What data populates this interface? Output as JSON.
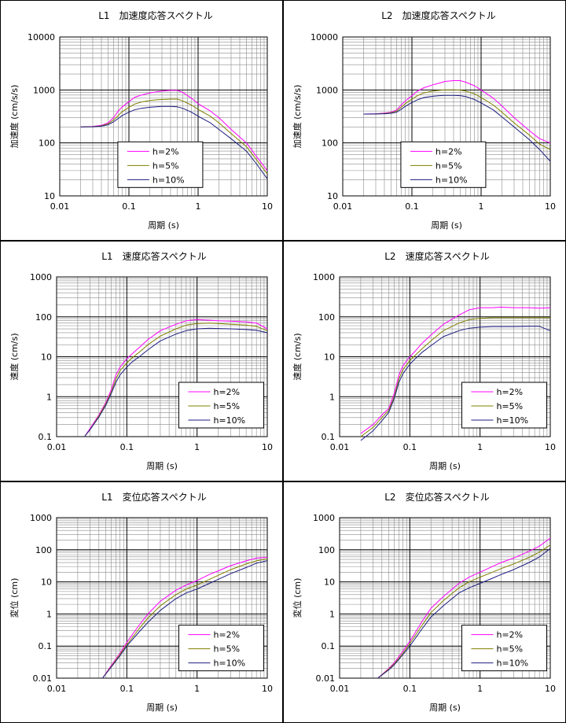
{
  "chart_data": [
    {
      "type": "line",
      "title": "L1　加速度応答スペクトル",
      "xlabel": "周期 (s)",
      "ylabel": "加速度 (cm/s/s)",
      "xscale": "log",
      "yscale": "log",
      "xlim": [
        0.01,
        10
      ],
      "ylim": [
        10,
        10000
      ],
      "xticks": [
        "0.01",
        "0.1",
        "1",
        "10"
      ],
      "yticks": [
        "10",
        "100",
        "1000",
        "10000"
      ],
      "grid": true,
      "legend_position": "bottom-center",
      "series": [
        {
          "name": "h=2%",
          "color": "#ff00ff",
          "x": [
            0.02,
            0.03,
            0.04,
            0.05,
            0.06,
            0.07,
            0.08,
            0.1,
            0.12,
            0.15,
            0.2,
            0.25,
            0.3,
            0.4,
            0.5,
            0.6,
            0.8,
            1,
            1.5,
            2,
            3,
            5,
            7,
            10
          ],
          "y": [
            200,
            205,
            215,
            240,
            300,
            400,
            480,
            600,
            720,
            800,
            880,
            920,
            950,
            980,
            980,
            900,
            700,
            550,
            400,
            300,
            180,
            100,
            55,
            30
          ]
        },
        {
          "name": "h=5%",
          "color": "#808000",
          "x": [
            0.02,
            0.03,
            0.04,
            0.05,
            0.06,
            0.07,
            0.08,
            0.1,
            0.12,
            0.15,
            0.2,
            0.25,
            0.3,
            0.4,
            0.5,
            0.6,
            0.8,
            1,
            1.5,
            2,
            3,
            5,
            7,
            10
          ],
          "y": [
            200,
            203,
            210,
            230,
            270,
            330,
            390,
            470,
            540,
            590,
            630,
            650,
            660,
            670,
            670,
            620,
            520,
            430,
            320,
            240,
            150,
            85,
            48,
            26
          ]
        },
        {
          "name": "h=10%",
          "color": "#1c1c80",
          "x": [
            0.02,
            0.03,
            0.04,
            0.05,
            0.06,
            0.07,
            0.08,
            0.1,
            0.12,
            0.15,
            0.2,
            0.25,
            0.3,
            0.4,
            0.5,
            0.6,
            0.8,
            1,
            1.5,
            2,
            3,
            5,
            7,
            10
          ],
          "y": [
            200,
            202,
            207,
            220,
            250,
            290,
            330,
            380,
            420,
            450,
            470,
            480,
            490,
            490,
            480,
            450,
            380,
            320,
            240,
            180,
            120,
            70,
            40,
            21
          ]
        }
      ]
    },
    {
      "type": "line",
      "title": "L2　加速度応答スペクトル",
      "xlabel": "周期 (s)",
      "ylabel": "加速度 (cm/s/s)",
      "xscale": "log",
      "yscale": "log",
      "xlim": [
        0.01,
        10
      ],
      "ylim": [
        10,
        10000
      ],
      "xticks": [
        "0.01",
        "0.1",
        "1",
        "10"
      ],
      "yticks": [
        "10",
        "100",
        "1000",
        "10000"
      ],
      "grid": true,
      "legend_position": "bottom-center",
      "series": [
        {
          "name": "h=2%",
          "color": "#ff00ff",
          "x": [
            0.02,
            0.03,
            0.04,
            0.05,
            0.06,
            0.07,
            0.08,
            0.1,
            0.12,
            0.15,
            0.2,
            0.25,
            0.3,
            0.4,
            0.5,
            0.6,
            0.8,
            1,
            1.5,
            2,
            3,
            5,
            7,
            10
          ],
          "y": [
            350,
            355,
            365,
            380,
            420,
            520,
            620,
            780,
            950,
            1100,
            1250,
            1350,
            1450,
            1500,
            1500,
            1400,
            1200,
            1000,
            700,
            500,
            300,
            170,
            120,
            100
          ]
        },
        {
          "name": "h=5%",
          "color": "#808000",
          "x": [
            0.02,
            0.03,
            0.04,
            0.05,
            0.06,
            0.07,
            0.08,
            0.1,
            0.12,
            0.15,
            0.2,
            0.25,
            0.3,
            0.4,
            0.5,
            0.6,
            0.8,
            1,
            1.5,
            2,
            3,
            5,
            7,
            10
          ],
          "y": [
            350,
            352,
            360,
            370,
            400,
            470,
            550,
            670,
            780,
            880,
            950,
            980,
            1000,
            1000,
            990,
            950,
            850,
            720,
            520,
            380,
            240,
            140,
            95,
            75
          ]
        },
        {
          "name": "h=10%",
          "color": "#1c1c80",
          "x": [
            0.02,
            0.03,
            0.04,
            0.05,
            0.06,
            0.07,
            0.08,
            0.1,
            0.12,
            0.15,
            0.2,
            0.25,
            0.3,
            0.4,
            0.5,
            0.6,
            0.8,
            1,
            1.5,
            2,
            3,
            5,
            7,
            10
          ],
          "y": [
            350,
            351,
            355,
            362,
            380,
            430,
            490,
            580,
            650,
            720,
            760,
            780,
            790,
            790,
            780,
            750,
            660,
            570,
            420,
            310,
            200,
            115,
            75,
            45
          ]
        }
      ]
    },
    {
      "type": "line",
      "title": "L1　速度応答スペクトル",
      "xlabel": "周期 (s)",
      "ylabel": "速度 (cm/s)",
      "xscale": "log",
      "yscale": "log",
      "xlim": [
        0.01,
        10
      ],
      "ylim": [
        0.1,
        1000
      ],
      "xticks": [
        "0.01",
        "0.1",
        "1",
        "10"
      ],
      "yticks": [
        "0.1",
        "1",
        "10",
        "100",
        "1000"
      ],
      "grid": true,
      "legend_position": "bottom-right",
      "series": [
        {
          "name": "h=2%",
          "color": "#ff00ff",
          "x": [
            0.025,
            0.03,
            0.04,
            0.05,
            0.06,
            0.07,
            0.08,
            0.1,
            0.12,
            0.15,
            0.2,
            0.3,
            0.5,
            0.7,
            1,
            1.5,
            2,
            3,
            5,
            7,
            10
          ],
          "y": [
            0.1,
            0.16,
            0.35,
            0.7,
            1.5,
            3.5,
            5.5,
            9,
            12,
            17,
            27,
            45,
            65,
            80,
            85,
            82,
            80,
            78,
            75,
            70,
            50
          ]
        },
        {
          "name": "h=5%",
          "color": "#808000",
          "x": [
            0.025,
            0.03,
            0.04,
            0.05,
            0.06,
            0.07,
            0.08,
            0.1,
            0.12,
            0.15,
            0.2,
            0.3,
            0.5,
            0.7,
            1,
            1.5,
            2,
            3,
            5,
            7,
            10
          ],
          "y": [
            0.1,
            0.15,
            0.33,
            0.65,
            1.3,
            2.8,
            4.5,
            7,
            9.5,
            13,
            20,
            33,
            50,
            62,
            68,
            70,
            68,
            65,
            62,
            58,
            45
          ]
        },
        {
          "name": "h=10%",
          "color": "#1c1c80",
          "x": [
            0.025,
            0.03,
            0.04,
            0.05,
            0.06,
            0.07,
            0.08,
            0.1,
            0.12,
            0.15,
            0.2,
            0.3,
            0.5,
            0.7,
            1,
            1.5,
            2,
            3,
            5,
            7,
            10
          ],
          "y": [
            0.1,
            0.15,
            0.31,
            0.6,
            1.2,
            2.3,
            3.5,
            5.5,
            7.5,
            10,
            15,
            25,
            37,
            45,
            50,
            52,
            51,
            50,
            48,
            46,
            40
          ]
        }
      ]
    },
    {
      "type": "line",
      "title": "L2　速度応答スペクトル",
      "xlabel": "周期 (s)",
      "ylabel": "速度 (cm/s)",
      "xscale": "log",
      "yscale": "log",
      "xlim": [
        0.01,
        10
      ],
      "ylim": [
        0.1,
        1000
      ],
      "xticks": [
        "0.01",
        "0.1",
        "1",
        "10"
      ],
      "yticks": [
        "0.1",
        "1",
        "10",
        "100",
        "1000"
      ],
      "grid": true,
      "legend_position": "bottom-right",
      "series": [
        {
          "name": "h=2%",
          "color": "#ff00ff",
          "x": [
            0.02,
            0.03,
            0.04,
            0.05,
            0.06,
            0.07,
            0.08,
            0.1,
            0.12,
            0.15,
            0.2,
            0.3,
            0.5,
            0.7,
            1,
            1.5,
            2,
            3,
            5,
            7,
            10
          ],
          "y": [
            0.12,
            0.2,
            0.35,
            0.5,
            1.2,
            3.5,
            6,
            10,
            14,
            22,
            35,
            65,
            110,
            150,
            170,
            170,
            175,
            170,
            170,
            165,
            170
          ]
        },
        {
          "name": "h=5%",
          "color": "#808000",
          "x": [
            0.02,
            0.03,
            0.04,
            0.05,
            0.06,
            0.07,
            0.08,
            0.1,
            0.12,
            0.15,
            0.2,
            0.3,
            0.5,
            0.7,
            1,
            1.5,
            2,
            3,
            5,
            7,
            10
          ],
          "y": [
            0.1,
            0.17,
            0.3,
            0.45,
            1,
            2.8,
            4.8,
            8,
            11,
            16,
            25,
            45,
            70,
            85,
            92,
            95,
            95,
            95,
            95,
            95,
            95
          ]
        },
        {
          "name": "h=10%",
          "color": "#1c1c80",
          "x": [
            0.02,
            0.03,
            0.04,
            0.05,
            0.06,
            0.07,
            0.08,
            0.1,
            0.12,
            0.15,
            0.2,
            0.3,
            0.5,
            0.7,
            1,
            1.5,
            2,
            3,
            5,
            7,
            10
          ],
          "y": [
            0.08,
            0.14,
            0.25,
            0.4,
            0.9,
            2.3,
            3.8,
            6.5,
            9,
            13,
            19,
            32,
            45,
            52,
            55,
            57,
            57,
            57,
            58,
            58,
            45
          ]
        }
      ]
    },
    {
      "type": "line",
      "title": "L1　変位応答スペクトル",
      "xlabel": "周期 (s)",
      "ylabel": "変位 (cm)",
      "xscale": "log",
      "yscale": "log",
      "xlim": [
        0.01,
        10
      ],
      "ylim": [
        0.01,
        1000
      ],
      "xticks": [
        "0.01",
        "0.1",
        "1",
        "10"
      ],
      "yticks": [
        "0.01",
        "0.1",
        "1",
        "10",
        "100",
        "1000"
      ],
      "grid": true,
      "legend_position": "bottom-right",
      "series": [
        {
          "name": "h=2%",
          "color": "#ff00ff",
          "x": [
            0.045,
            0.06,
            0.08,
            0.1,
            0.15,
            0.2,
            0.3,
            0.5,
            0.7,
            1,
            1.5,
            2,
            3,
            5,
            7,
            10
          ],
          "y": [
            0.01,
            0.025,
            0.06,
            0.13,
            0.45,
            1,
            2.5,
            5.5,
            8,
            11,
            17,
            22,
            32,
            45,
            55,
            58
          ]
        },
        {
          "name": "h=5%",
          "color": "#808000",
          "x": [
            0.045,
            0.06,
            0.08,
            0.1,
            0.15,
            0.2,
            0.3,
            0.5,
            0.7,
            1,
            1.5,
            2,
            3,
            5,
            7,
            10
          ],
          "y": [
            0.01,
            0.023,
            0.055,
            0.11,
            0.35,
            0.75,
            1.8,
            4,
            6,
            8,
            12,
            16,
            24,
            36,
            45,
            52
          ]
        },
        {
          "name": "h=10%",
          "color": "#1c1c80",
          "x": [
            0.045,
            0.06,
            0.08,
            0.1,
            0.15,
            0.2,
            0.3,
            0.5,
            0.7,
            1,
            1.5,
            2,
            3,
            5,
            7,
            10
          ],
          "y": [
            0.01,
            0.022,
            0.05,
            0.1,
            0.28,
            0.55,
            1.3,
            3,
            4.5,
            6,
            9,
            12,
            18,
            28,
            38,
            46
          ]
        }
      ]
    },
    {
      "type": "line",
      "title": "L2　変位応答スペクトル",
      "xlabel": "周期 (s)",
      "ylabel": "変位 (cm)",
      "xscale": "log",
      "yscale": "log",
      "xlim": [
        0.01,
        10
      ],
      "ylim": [
        0.01,
        1000
      ],
      "xticks": [
        "0.01",
        "0.1",
        "1",
        "10"
      ],
      "yticks": [
        "0.01",
        "0.1",
        "1",
        "10",
        "100",
        "1000"
      ],
      "grid": true,
      "legend_position": "bottom-right",
      "series": [
        {
          "name": "h=2%",
          "color": "#ff00ff",
          "x": [
            0.035,
            0.05,
            0.06,
            0.08,
            0.1,
            0.15,
            0.2,
            0.3,
            0.5,
            0.7,
            1,
            1.5,
            2,
            3,
            5,
            7,
            10
          ],
          "y": [
            0.01,
            0.02,
            0.03,
            0.07,
            0.14,
            0.6,
            1.5,
            3.5,
            9,
            14,
            20,
            30,
            40,
            55,
            90,
            130,
            230
          ]
        },
        {
          "name": "h=5%",
          "color": "#808000",
          "x": [
            0.035,
            0.05,
            0.06,
            0.08,
            0.1,
            0.15,
            0.2,
            0.3,
            0.5,
            0.7,
            1,
            1.5,
            2,
            3,
            5,
            7,
            10
          ],
          "y": [
            0.01,
            0.019,
            0.028,
            0.06,
            0.12,
            0.45,
            1.1,
            2.6,
            6.5,
            10,
            14,
            20,
            26,
            36,
            58,
            85,
            140
          ]
        },
        {
          "name": "h=10%",
          "color": "#1c1c80",
          "x": [
            0.035,
            0.05,
            0.06,
            0.08,
            0.1,
            0.15,
            0.2,
            0.3,
            0.5,
            0.7,
            1,
            1.5,
            2,
            3,
            5,
            7,
            10
          ],
          "y": [
            0.01,
            0.018,
            0.026,
            0.055,
            0.1,
            0.35,
            0.8,
            1.8,
            4.5,
            6.5,
            9,
            13,
            17,
            24,
            40,
            60,
            110
          ]
        }
      ]
    }
  ]
}
